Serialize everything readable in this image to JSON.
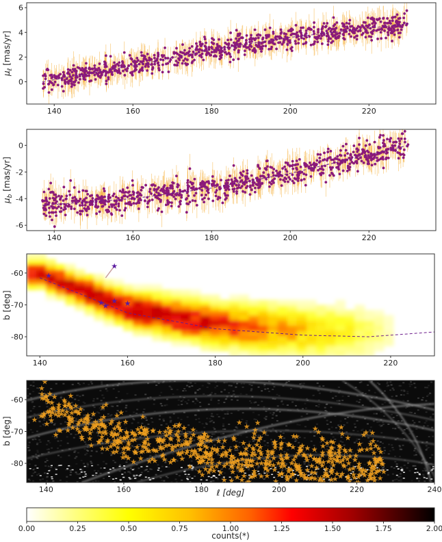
{
  "chart_data": [
    {
      "id": "pml",
      "type": "scatter",
      "ylabel_symbol": "μ",
      "ylabel_sub": "ℓ",
      "ylabel_unit": " [mas/yr]",
      "xlim": [
        133,
        237
      ],
      "ylim": [
        -1.8,
        6.4
      ],
      "xticks": [
        "140",
        "160",
        "180",
        "200",
        "220"
      ],
      "yticks": [
        "0",
        "2",
        "4",
        "6"
      ],
      "x_range": [
        137,
        230
      ],
      "trend": {
        "x": [
          137,
          160,
          180,
          200,
          230
        ],
        "y": [
          0.0,
          1.3,
          2.6,
          3.6,
          4.7
        ]
      },
      "scatter_sigma": 0.45,
      "n_points": 900,
      "point_color": "#8b1a7a",
      "errorbar_color": "#f5a623"
    },
    {
      "id": "pmb",
      "type": "scatter",
      "ylabel_symbol": "μ",
      "ylabel_sub": "b",
      "ylabel_unit": " [mas/yr]",
      "xlim": [
        133,
        237
      ],
      "ylim": [
        -6.4,
        1.2
      ],
      "xticks": [
        "140",
        "160",
        "180",
        "200",
        "220"
      ],
      "yticks": [
        "-6",
        "-4",
        "-2",
        "0"
      ],
      "x_range": [
        137,
        230
      ],
      "trend": {
        "x": [
          137,
          160,
          180,
          200,
          230
        ],
        "y": [
          -4.5,
          -4.0,
          -3.2,
          -2.1,
          0.0
        ]
      },
      "scatter_sigma": 0.5,
      "n_points": 900,
      "point_color": "#8b1a7a",
      "errorbar_color": "#f5a623"
    },
    {
      "id": "density",
      "type": "heatmap",
      "ylabel": "b [deg]",
      "xlim": [
        137,
        230
      ],
      "ylim": [
        -86,
        -54
      ],
      "xticks": [
        "140",
        "160",
        "180",
        "200",
        "220"
      ],
      "yticks": [
        "-60",
        "-70",
        "-80"
      ],
      "track": {
        "x": [
          140,
          160,
          180,
          200,
          215,
          230
        ],
        "y": [
          -61.5,
          -72.5,
          -77.5,
          -79.5,
          -80.0,
          -78.5
        ]
      },
      "track_color": "#6a1a8a",
      "stars": [
        {
          "x": 142,
          "y": -60.8
        },
        {
          "x": 154,
          "y": -69.2
        },
        {
          "x": 155,
          "y": -70.2
        },
        {
          "x": 157,
          "y": -68.7
        },
        {
          "x": 160,
          "y": -69.5
        },
        {
          "x": 157,
          "y": -57.8
        }
      ],
      "arrow_from": {
        "x": 157,
        "y": -57.8
      },
      "arrow_to": {
        "x": 155,
        "y": -61.5
      }
    },
    {
      "id": "background",
      "type": "scatter",
      "ylabel": "b [deg]",
      "xlabel": "ℓ [deg]",
      "xlim": [
        135,
        240
      ],
      "ylim": [
        -86,
        -54
      ],
      "xticks": [
        "140",
        "160",
        "180",
        "200",
        "220",
        "240"
      ],
      "yticks": [
        "-60",
        "-70",
        "-80"
      ],
      "star_color": "#f0a020",
      "n_stars": 700
    },
    {
      "id": "colorbar",
      "type": "colorbar",
      "label": "counts(*)",
      "ticks": [
        "0.00",
        "0.25",
        "0.50",
        "0.75",
        "1.00",
        "1.25",
        "1.50",
        "1.75",
        "2.00"
      ],
      "range": [
        0,
        2
      ],
      "colormap": "hot_r"
    }
  ]
}
